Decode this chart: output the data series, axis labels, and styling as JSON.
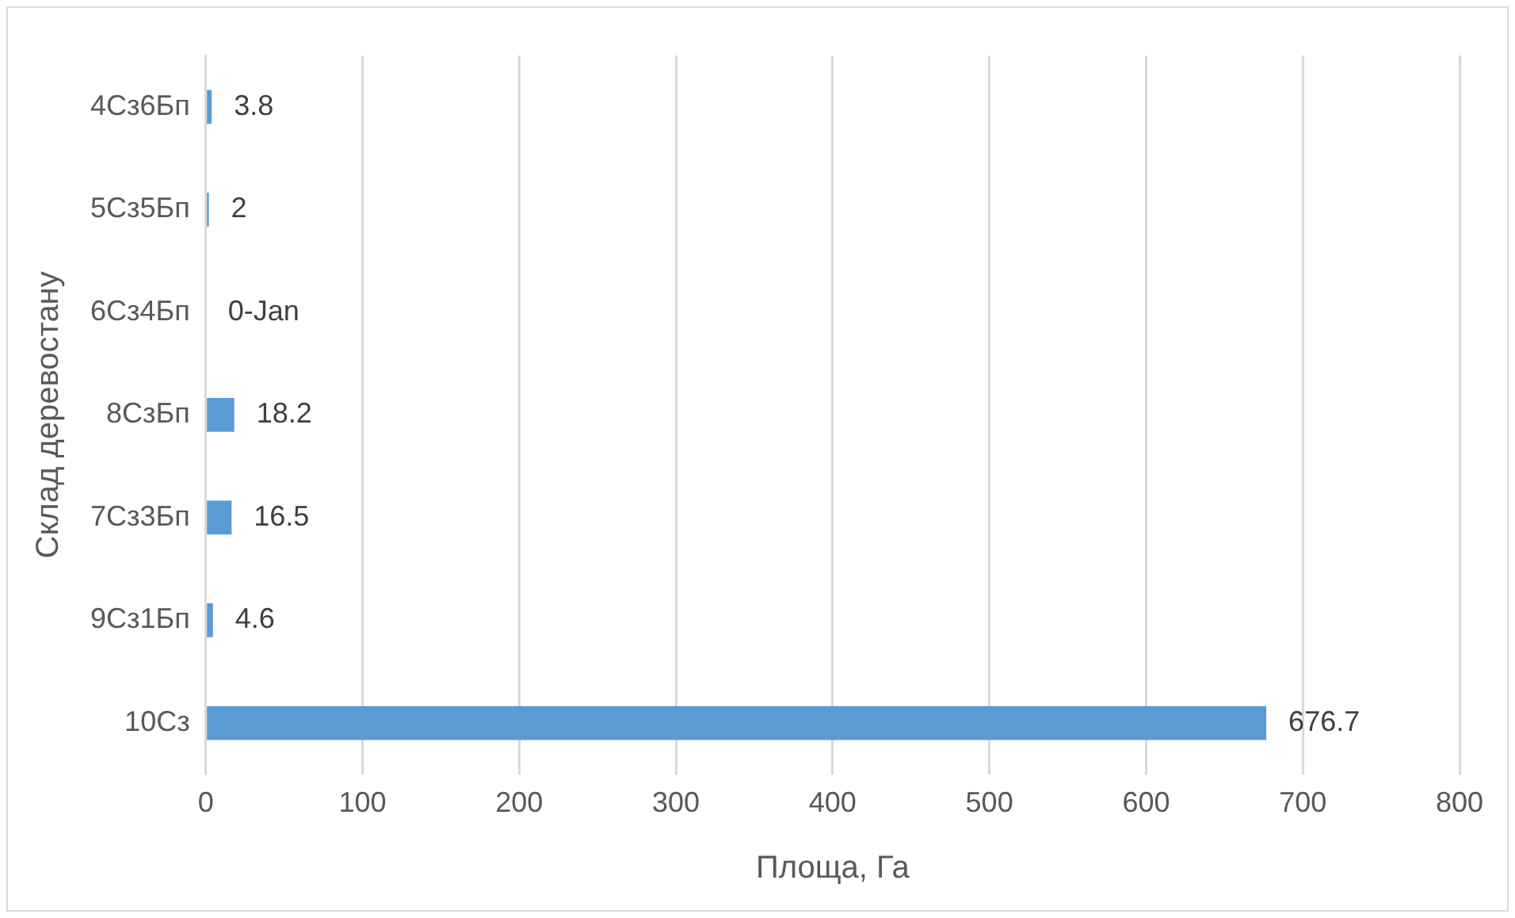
{
  "chart_data": {
    "type": "bar",
    "orientation": "horizontal",
    "xlabel": "Площа, Га",
    "ylabel": "Склад деревостану",
    "categories": [
      "4Сз6Бп",
      "5Сз5Бп",
      "6Сз4Бп",
      "8СзБп",
      "7Сз3Бп",
      "9Сз1Бп",
      "10Сз"
    ],
    "values": [
      3.8,
      2,
      0,
      18.2,
      16.5,
      4.6,
      676.7
    ],
    "value_labels": [
      "3.8",
      "2",
      "0-Jan",
      "18.2",
      "16.5",
      "4.6",
      "676.7"
    ],
    "color": "#5b9bd5",
    "xlim": [
      0,
      800
    ],
    "xticks": [
      0,
      100,
      200,
      300,
      400,
      500,
      600,
      700,
      800
    ],
    "grid": "x",
    "legend": false
  }
}
